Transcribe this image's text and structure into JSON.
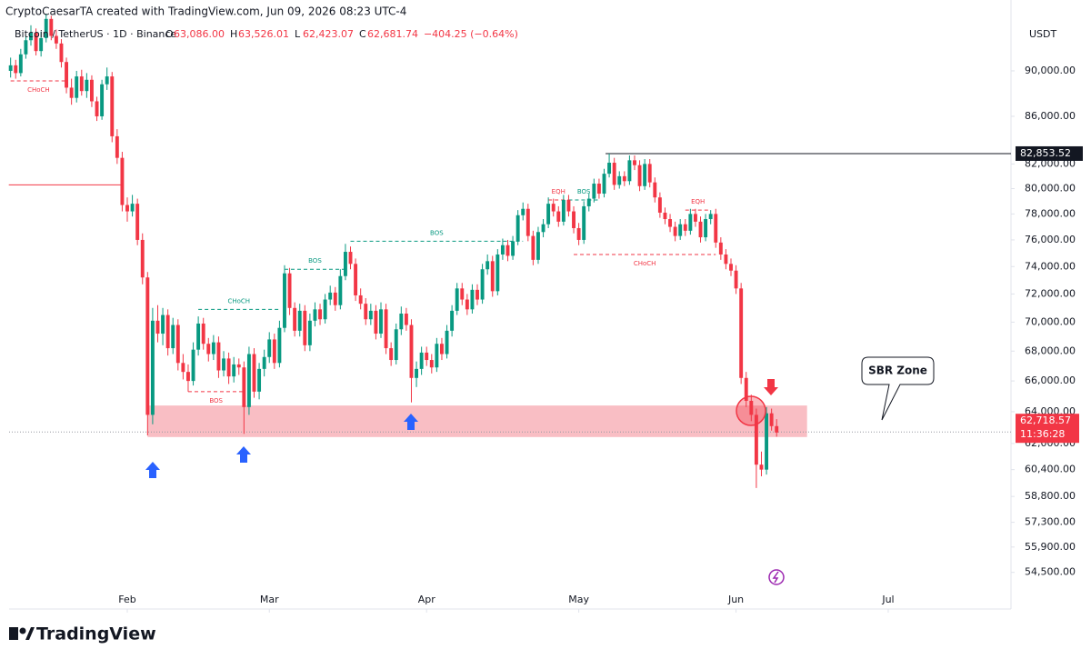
{
  "header": {
    "credit": "CryptoCaesarTA created with TradingView.com, Jun 09, 2026 08:23 UTC-4",
    "symbol": "Bitcoin / TetherUS · 1D · Binance",
    "ohlc": [
      {
        "key": "O",
        "value": "63,086.00"
      },
      {
        "key": "H",
        "value": "63,526.01"
      },
      {
        "key": "L",
        "value": "62,423.07"
      },
      {
        "key": "C",
        "value": "62,681.74"
      }
    ],
    "change": "−404.25 (−0.64%)",
    "currency": "USDT",
    "brand": "TradingView"
  },
  "chart_data": {
    "type": "candlestick",
    "log_scale": true,
    "up_color": "#089981",
    "down_color": "#f23645",
    "xlim": [
      -0.3,
      197.2
    ],
    "ylim": [
      52540,
      96610
    ],
    "xticks": [
      {
        "value": 23,
        "label": "Feb"
      },
      {
        "value": 51,
        "label": "Mar"
      },
      {
        "value": 82,
        "label": "Apr"
      },
      {
        "value": 112,
        "label": "May"
      },
      {
        "value": 143,
        "label": "Jun"
      },
      {
        "value": 173,
        "label": "Jul"
      }
    ],
    "yticks": [
      {
        "value": 90000,
        "label": "90,000.00"
      },
      {
        "value": 86000,
        "label": "86,000.00"
      },
      {
        "value": 82000,
        "label": "82,000.00"
      },
      {
        "value": 80000,
        "label": "80,000.00"
      },
      {
        "value": 78000,
        "label": "78,000.00"
      },
      {
        "value": 76000,
        "label": "76,000.00"
      },
      {
        "value": 74000,
        "label": "74,000.00"
      },
      {
        "value": 72000,
        "label": "72,000.00"
      },
      {
        "value": 70000,
        "label": "70,000.00"
      },
      {
        "value": 68000,
        "label": "68,000.00"
      },
      {
        "value": 66000,
        "label": "66,000.00"
      },
      {
        "value": 64000,
        "label": "64,000.00"
      },
      {
        "value": 62000,
        "label": "62,000.00"
      },
      {
        "value": 60400,
        "label": "60,400.00"
      },
      {
        "value": 58800,
        "label": "58,800.00"
      },
      {
        "value": 57300,
        "label": "57,300.00"
      },
      {
        "value": 55900,
        "label": "55,900.00"
      },
      {
        "value": 54500,
        "label": "54,500.00"
      }
    ],
    "ohlc": [
      [
        90000,
        91200,
        89400,
        90500
      ],
      [
        90500,
        91000,
        89300,
        89800
      ],
      [
        89800,
        92000,
        89500,
        91500
      ],
      [
        91500,
        93200,
        91100,
        92800
      ],
      [
        92800,
        94200,
        92300,
        93500
      ],
      [
        93500,
        93900,
        91400,
        91800
      ],
      [
        91800,
        93600,
        91300,
        93000
      ],
      [
        93000,
        95300,
        92600,
        94800
      ],
      [
        94800,
        95100,
        92800,
        93200
      ],
      [
        93200,
        93800,
        92000,
        92500
      ],
      [
        92500,
        92900,
        90300,
        90800
      ],
      [
        90800,
        91200,
        88000,
        88500
      ],
      [
        88500,
        89300,
        87000,
        87600
      ],
      [
        87600,
        90000,
        87200,
        89500
      ],
      [
        89500,
        90100,
        87800,
        88200
      ],
      [
        88200,
        89800,
        87600,
        89200
      ],
      [
        89200,
        89600,
        86800,
        87300
      ],
      [
        87300,
        87700,
        85600,
        86000
      ],
      [
        86000,
        89200,
        85700,
        88800
      ],
      [
        88800,
        90300,
        88300,
        89500
      ],
      [
        89500,
        89900,
        83800,
        84300
      ],
      [
        84300,
        84900,
        82000,
        82500
      ],
      [
        82500,
        83000,
        78200,
        78700
      ],
      [
        78700,
        79300,
        77400,
        78200
      ],
      [
        78200,
        79500,
        77800,
        78800
      ],
      [
        78800,
        79200,
        75600,
        76000
      ],
      [
        76000,
        76500,
        72700,
        73200
      ],
      [
        73200,
        73600,
        62500,
        63800
      ],
      [
        63800,
        71000,
        63200,
        70100
      ],
      [
        70100,
        71200,
        68600,
        69200
      ],
      [
        69200,
        71000,
        68400,
        70500
      ],
      [
        70500,
        70900,
        67700,
        68200
      ],
      [
        68200,
        70300,
        67800,
        69800
      ],
      [
        69800,
        70200,
        66700,
        67200
      ],
      [
        67200,
        67800,
        66100,
        66600
      ],
      [
        66600,
        67100,
        65300,
        66000
      ],
      [
        66000,
        68600,
        65700,
        68100
      ],
      [
        68100,
        70400,
        67700,
        69900
      ],
      [
        69900,
        70300,
        68100,
        68500
      ],
      [
        68500,
        68900,
        67300,
        67800
      ],
      [
        67800,
        69100,
        67400,
        68600
      ],
      [
        68600,
        69000,
        66200,
        66700
      ],
      [
        66700,
        68000,
        66300,
        67500
      ],
      [
        67500,
        67900,
        65800,
        66300
      ],
      [
        66300,
        67600,
        65900,
        67100
      ],
      [
        67100,
        67500,
        66400,
        66900
      ],
      [
        66900,
        67300,
        62600,
        64300
      ],
      [
        64300,
        68300,
        63800,
        67800
      ],
      [
        67800,
        68200,
        64900,
        65300
      ],
      [
        65300,
        67200,
        64800,
        66800
      ],
      [
        66800,
        68100,
        66300,
        67600
      ],
      [
        67600,
        69300,
        67200,
        68800
      ],
      [
        68800,
        69200,
        66800,
        67200
      ],
      [
        67200,
        70100,
        66900,
        69600
      ],
      [
        69600,
        74100,
        69300,
        73500
      ],
      [
        73500,
        73900,
        70500,
        71000
      ],
      [
        71000,
        71400,
        69000,
        69400
      ],
      [
        69400,
        71300,
        69000,
        70800
      ],
      [
        70800,
        71200,
        68000,
        68400
      ],
      [
        68400,
        70600,
        68000,
        70100
      ],
      [
        70100,
        71400,
        69700,
        70900
      ],
      [
        70900,
        71300,
        69800,
        70200
      ],
      [
        70200,
        72000,
        69900,
        71600
      ],
      [
        71600,
        72600,
        71200,
        72100
      ],
      [
        72100,
        72500,
        70800,
        71200
      ],
      [
        71200,
        73800,
        70900,
        73300
      ],
      [
        73300,
        75700,
        73000,
        75100
      ],
      [
        75100,
        75500,
        73800,
        74200
      ],
      [
        74200,
        74600,
        71500,
        71900
      ],
      [
        71900,
        72400,
        70900,
        71300
      ],
      [
        71300,
        71700,
        69800,
        70200
      ],
      [
        70200,
        71300,
        69800,
        70800
      ],
      [
        70800,
        71200,
        68800,
        69200
      ],
      [
        69200,
        71400,
        68900,
        70900
      ],
      [
        70900,
        71300,
        67800,
        68200
      ],
      [
        68200,
        68600,
        67000,
        67400
      ],
      [
        67400,
        69900,
        67100,
        69500
      ],
      [
        69500,
        71100,
        69100,
        70600
      ],
      [
        70600,
        71000,
        69400,
        69800
      ],
      [
        69800,
        70200,
        64600,
        66200
      ],
      [
        66200,
        67300,
        65600,
        66800
      ],
      [
        66800,
        68300,
        66400,
        67900
      ],
      [
        67900,
        68300,
        67000,
        67400
      ],
      [
        67400,
        67800,
        66500,
        66900
      ],
      [
        66900,
        68900,
        66600,
        68500
      ],
      [
        68500,
        68900,
        67400,
        67800
      ],
      [
        67800,
        69800,
        67500,
        69400
      ],
      [
        69400,
        71200,
        69000,
        70800
      ],
      [
        70800,
        72800,
        70500,
        72400
      ],
      [
        72400,
        72800,
        71200,
        71600
      ],
      [
        71600,
        72000,
        70500,
        70900
      ],
      [
        70900,
        72700,
        70600,
        72300
      ],
      [
        72300,
        72700,
        71200,
        71600
      ],
      [
        71600,
        74200,
        71300,
        73800
      ],
      [
        73800,
        74900,
        73400,
        74400
      ],
      [
        74400,
        74800,
        71800,
        72200
      ],
      [
        72200,
        75300,
        71900,
        74900
      ],
      [
        74900,
        76100,
        74500,
        75600
      ],
      [
        75600,
        76000,
        74400,
        74800
      ],
      [
        74800,
        76300,
        74500,
        75900
      ],
      [
        75900,
        78300,
        75600,
        77900
      ],
      [
        77900,
        78900,
        77500,
        78400
      ],
      [
        78400,
        78800,
        75900,
        76300
      ],
      [
        76300,
        76700,
        74100,
        74500
      ],
      [
        74500,
        77000,
        74200,
        76600
      ],
      [
        76600,
        77600,
        76200,
        77200
      ],
      [
        77200,
        79300,
        76900,
        78800
      ],
      [
        78800,
        79200,
        77800,
        78200
      ],
      [
        78200,
        78600,
        77000,
        77400
      ],
      [
        77400,
        79500,
        77100,
        79100
      ],
      [
        79100,
        79500,
        77800,
        78200
      ],
      [
        78200,
        78600,
        76500,
        76900
      ],
      [
        76900,
        77300,
        75600,
        76000
      ],
      [
        76000,
        79000,
        75700,
        78600
      ],
      [
        78600,
        79600,
        78200,
        79200
      ],
      [
        79200,
        80800,
        78900,
        80400
      ],
      [
        80400,
        80800,
        79200,
        79600
      ],
      [
        79600,
        81600,
        79300,
        81200
      ],
      [
        81200,
        82853.52,
        80900,
        82100
      ],
      [
        82100,
        82500,
        79900,
        80300
      ],
      [
        80300,
        81400,
        80000,
        81000
      ],
      [
        81000,
        81400,
        80200,
        80600
      ],
      [
        80600,
        82700,
        80300,
        82300
      ],
      [
        82300,
        82700,
        81500,
        81900
      ],
      [
        81900,
        82300,
        79800,
        80200
      ],
      [
        80200,
        82400,
        79900,
        82000
      ],
      [
        82000,
        82400,
        80100,
        80500
      ],
      [
        80500,
        80900,
        78900,
        79300
      ],
      [
        79300,
        79700,
        77700,
        78100
      ],
      [
        78100,
        78500,
        77200,
        77600
      ],
      [
        77600,
        78000,
        76600,
        77000
      ],
      [
        77000,
        77400,
        75900,
        76300
      ],
      [
        76300,
        77600,
        76000,
        77200
      ],
      [
        77200,
        77600,
        76300,
        76700
      ],
      [
        76700,
        78400,
        76400,
        78000
      ],
      [
        78000,
        78400,
        77000,
        77400
      ],
      [
        77400,
        77800,
        75800,
        76200
      ],
      [
        76200,
        78000,
        75900,
        77600
      ],
      [
        77600,
        78300,
        77200,
        78000
      ],
      [
        78000,
        78400,
        75400,
        75800
      ],
      [
        75800,
        76200,
        74500,
        74900
      ],
      [
        74900,
        75300,
        73800,
        74200
      ],
      [
        74200,
        74600,
        73300,
        73700
      ],
      [
        73700,
        74100,
        72000,
        72400
      ],
      [
        72400,
        72800,
        65800,
        66200
      ],
      [
        66200,
        66600,
        64300,
        64700
      ],
      [
        64700,
        65100,
        63400,
        63800
      ],
      [
        63800,
        64200,
        59300,
        60700
      ],
      [
        60700,
        61500,
        60000,
        60400
      ],
      [
        60400,
        64300,
        60100,
        63900
      ],
      [
        63900,
        64200,
        62800,
        63086
      ],
      [
        63086,
        63526.01,
        62423.07,
        62681.74
      ]
    ],
    "high_line": {
      "value": 82853.52,
      "label": "82,853.52",
      "from": 118
    },
    "last_price": {
      "value": 62718.57,
      "label": "62,718.57",
      "countdown": "11:36:28"
    },
    "support_line": {
      "value": 80300,
      "from": 0,
      "to": 22
    },
    "zone": {
      "low": 62400,
      "high": 64400,
      "from": 27,
      "to": 157,
      "label": "SBR Zone"
    },
    "annotations": [
      {
        "label": "CHoCH",
        "value": 89100,
        "from": 0,
        "to": 11,
        "color": "#f23645",
        "side": "below"
      },
      {
        "label": "CHoCH",
        "value": 70900,
        "from": 37,
        "to": 53,
        "color": "#089981",
        "side": "above"
      },
      {
        "label": "BOS",
        "value": 65300,
        "from": 35,
        "to": 46,
        "color": "#f23645",
        "side": "below"
      },
      {
        "label": "BOS",
        "value": 73800,
        "from": 54,
        "to": 66,
        "color": "#089981",
        "side": "above"
      },
      {
        "label": "BOS",
        "value": 75900,
        "from": 67,
        "to": 101,
        "color": "#089981",
        "side": "above"
      },
      {
        "label": "EQH",
        "value": 79100,
        "from": 106,
        "to": 110,
        "color": "#f23645",
        "side": "above"
      },
      {
        "label": "BOS",
        "value": 79100,
        "from": 110,
        "to": 116,
        "color": "#089981",
        "side": "above"
      },
      {
        "label": "EQH",
        "value": 78300,
        "from": 133,
        "to": 138,
        "color": "#f23645",
        "side": "above"
      },
      {
        "label": "CHoCH",
        "value": 74900,
        "from": 111,
        "to": 139,
        "color": "#f23645",
        "side": "below"
      }
    ]
  }
}
